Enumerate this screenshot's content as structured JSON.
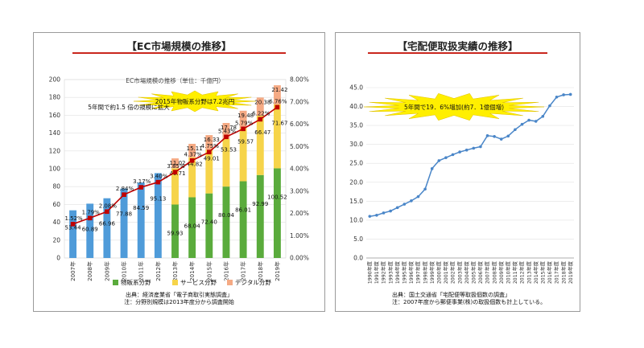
{
  "left": {
    "title": "【EC市場規模の推移】",
    "source_line1": "出典：経済産業省「電子商取引実態調査」",
    "source_line2": "注：分野別規模は2013年度分から調査開始",
    "chart_data": {
      "type": "bar",
      "title": "EC市場規模の推移（単位：千億円）",
      "callout1": "2015年物販系分野は7.2兆円",
      "callout2": "5年間で約1.5 倍の規模に拡大",
      "categories": [
        "2007年",
        "2008年",
        "2009年",
        "2010年",
        "2011年",
        "2012年",
        "2013年",
        "2014年",
        "2015年",
        "2016年",
        "2017年",
        "2018年",
        "2019年"
      ],
      "ylim": [
        0,
        200
      ],
      "yticks": [
        "0",
        "20",
        "40",
        "60",
        "80",
        "100",
        "120",
        "140",
        "160",
        "180",
        "200"
      ],
      "y2lim": [
        0,
        8
      ],
      "y2ticks": [
        "0.00%",
        "1.00%",
        "2.00%",
        "3.00%",
        "4.00%",
        "5.00%",
        "6.00%",
        "7.00%",
        "8.00%"
      ],
      "total_values": [
        53.44,
        60.89,
        66.96,
        77.88,
        84.59,
        95.13,
        null,
        null,
        null,
        null,
        null,
        null,
        null
      ],
      "total_labels": [
        "53.44",
        "60.89",
        "66.96",
        "77.88",
        "84.59",
        "95.13",
        "",
        "",
        "",
        "",
        "",
        "",
        ""
      ],
      "series": [
        {
          "name": "物販系分野",
          "values": [
            null,
            null,
            null,
            null,
            null,
            null,
            59.93,
            68.04,
            72.4,
            80.04,
            86.01,
            92.99,
            100.52
          ],
          "labels": [
            "",
            "",
            "",
            "",
            "",
            "",
            "59.93",
            "68.04",
            "72.40",
            "80.04",
            "86.01",
            "92.99",
            "100.52"
          ]
        },
        {
          "name": "サービス分野",
          "values": [
            null,
            null,
            null,
            null,
            null,
            null,
            40.71,
            44.82,
            49.01,
            53.53,
            59.57,
            66.47,
            71.67
          ],
          "labels": [
            "",
            "",
            "",
            "",
            "",
            "",
            "40.71",
            "44.82",
            "49.01",
            "53.53",
            "59.57",
            "66.47",
            "71.67"
          ]
        },
        {
          "name": "デジタル分野",
          "values": [
            null,
            null,
            null,
            null,
            null,
            null,
            11.02,
            15.11,
            16.33,
            17.78,
            19.48,
            20.38,
            21.42
          ],
          "labels": [
            "",
            "",
            "",
            "",
            "",
            "",
            "11.02",
            "15.11",
            "16.33",
            "17.78",
            "19.48",
            "20.38",
            "21.42"
          ]
        }
      ],
      "rate_values": [
        1.52,
        1.79,
        2.08,
        2.84,
        3.17,
        3.4,
        3.85,
        4.37,
        4.75,
        5.43,
        5.79,
        6.22,
        6.76
      ],
      "rate_labels": [
        "1.52%",
        "1.79%",
        "2.08%",
        "2.84%",
        "3.17%",
        "3.40%",
        "3.85%",
        "4.37%",
        "4.75%",
        "5.43%",
        "5.79%",
        "6.22%",
        "6.76%"
      ],
      "colors": {
        "total": "#4f9bd9",
        "goods": "#5aab3c",
        "service": "#f6d44a",
        "digital": "#f5aa84",
        "rate": "#c00000"
      }
    }
  },
  "right": {
    "title": "【宅配便取扱実績の推移】",
    "source_line1": "出典：国土交通省「宅配便等取扱個数の調査」",
    "source_line2": "注：2007年度から郵便事業(株)の取扱個数も計上している。",
    "chart_data": {
      "type": "line",
      "callout": "5年間で19．6%増加(約7．1億個増)",
      "categories": [
        "1990年度",
        "1991年度",
        "1992年度",
        "1993年度",
        "1994年度",
        "1995年度",
        "1996年度",
        "1997年度",
        "1998年度",
        "1999年度",
        "2000年度",
        "2001年度",
        "2002年度",
        "2003年度",
        "2004年度",
        "2005年度",
        "2006年度",
        "2007年度",
        "2008年度",
        "2009年度",
        "2010年度",
        "2011年度",
        "2012年度",
        "2013年度",
        "2014年度",
        "2015年度",
        "2016年度",
        "2017年度",
        "2018年度",
        "2019年度"
      ],
      "values": [
        11.0,
        11.3,
        11.9,
        12.4,
        13.3,
        14.2,
        15.1,
        16.2,
        18.2,
        23.6,
        25.7,
        26.5,
        27.3,
        28.0,
        28.5,
        29.0,
        29.4,
        32.3,
        32.1,
        31.4,
        32.2,
        33.9,
        35.3,
        36.4,
        36.1,
        37.4,
        40.2,
        42.5,
        43.1,
        43.2
      ],
      "ylim": [
        0,
        45
      ],
      "yticks": [
        "0.0",
        "5.0",
        "10.0",
        "15.0",
        "20.0",
        "25.0",
        "30.0",
        "35.0",
        "40.0",
        "45.0"
      ],
      "colors": {
        "line": "#4a86c8"
      }
    }
  }
}
